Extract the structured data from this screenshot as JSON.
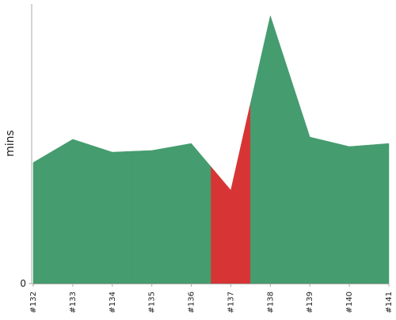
{
  "chart_data": {
    "type": "area",
    "y_label": "mins",
    "categories": [
      "#132",
      "#133",
      "#134",
      "#135",
      "#136",
      "#137",
      "#138",
      "#139",
      "#140",
      "#141"
    ],
    "values": [
      4.33,
      5.16,
      4.7,
      4.76,
      5.01,
      3.34,
      9.58,
      5.24,
      4.9,
      5.01
    ],
    "colors": [
      "#459c6f",
      "#459c6f",
      "#459c6f",
      "#459c6f",
      "#459c6f",
      "#d73535",
      "#459c6f",
      "#459c6f",
      "#459c6f",
      "#459c6f"
    ],
    "ylim": [
      0,
      10
    ],
    "yticks": [
      0
    ]
  }
}
